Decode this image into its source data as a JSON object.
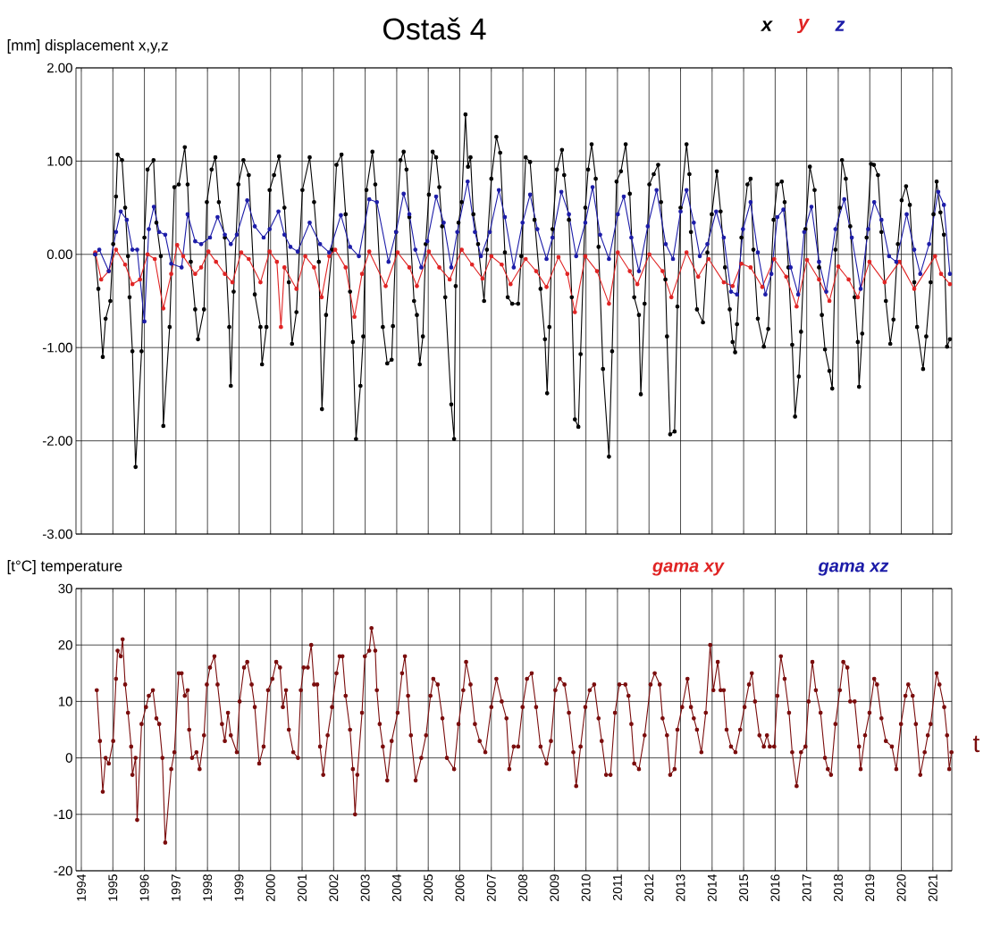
{
  "chart_data": [
    {
      "type": "line",
      "title": "Ostaš 4",
      "ylabel": "[mm] displacement x,y,z",
      "xlim": [
        1993.83,
        2021.6
      ],
      "xticks": [
        1994,
        1995,
        1996,
        1997,
        1998,
        1999,
        2000,
        2001,
        2002,
        2003,
        2004,
        2005,
        2006,
        2007,
        2008,
        2009,
        2010,
        2011,
        2012,
        2013,
        2014,
        2015,
        2016,
        2017,
        2018,
        2019,
        2020,
        2021
      ],
      "ylim": [
        -3,
        2
      ],
      "yticks": [
        {
          "value": -3,
          "label": "-3.00"
        },
        {
          "value": -2,
          "label": "-2.00"
        },
        {
          "value": -1,
          "label": "-1.00"
        },
        {
          "value": 0,
          "label": "0.00"
        },
        {
          "value": 1,
          "label": "1.00"
        },
        {
          "value": 2,
          "label": "2.00"
        }
      ],
      "tick_labels": "y",
      "grid": true,
      "legend": "top right",
      "marker": "circle",
      "line_style": "solid",
      "series": [
        {
          "name": "x",
          "color": "#000000",
          "x": [
            1994.44,
            1994.54,
            1994.68,
            1994.77,
            1994.92,
            1995.01,
            1995.1,
            1995.15,
            1995.29,
            1995.39,
            1995.48,
            1995.53,
            1995.62,
            1995.72,
            1995.91,
            1996.0,
            1996.1,
            1996.29,
            1996.38,
            1996.52,
            1996.6,
            1996.8,
            1996.95,
            1997.09,
            1997.28,
            1997.37,
            1997.47,
            1997.61,
            1997.7,
            1997.89,
            1997.98,
            1998.13,
            1998.25,
            1998.36,
            1998.55,
            1998.69,
            1998.74,
            1998.83,
            1998.98,
            1999.14,
            1999.31,
            1999.5,
            1999.68,
            1999.73,
            1999.87,
            1999.97,
            2000.11,
            2000.27,
            2000.44,
            2000.58,
            2000.68,
            2000.82,
            2001.01,
            2001.24,
            2001.38,
            2001.53,
            2001.63,
            2001.76,
            2001.95,
            2002.09,
            2002.25,
            2002.38,
            2002.52,
            2002.61,
            2002.71,
            2002.85,
            2002.94,
            2003.04,
            2003.23,
            2003.32,
            2003.56,
            2003.7,
            2003.84,
            2003.88,
            2003.98,
            2004.12,
            2004.22,
            2004.31,
            2004.4,
            2004.55,
            2004.64,
            2004.73,
            2004.83,
            2004.92,
            2005.02,
            2005.14,
            2005.25,
            2005.35,
            2005.44,
            2005.54,
            2005.73,
            2005.82,
            2005.87,
            2005.96,
            2006.06,
            2006.18,
            2006.26,
            2006.34,
            2006.43,
            2006.58,
            2006.77,
            2006.86,
            2007.0,
            2007.16,
            2007.28,
            2007.43,
            2007.52,
            2007.66,
            2007.85,
            2007.95,
            2008.09,
            2008.23,
            2008.37,
            2008.56,
            2008.7,
            2008.77,
            2008.84,
            2008.94,
            2009.08,
            2009.24,
            2009.31,
            2009.46,
            2009.55,
            2009.65,
            2009.76,
            2009.83,
            2009.98,
            2010.07,
            2010.18,
            2010.31,
            2010.4,
            2010.54,
            2010.73,
            2010.83,
            2010.97,
            2011.11,
            2011.26,
            2011.39,
            2011.53,
            2011.68,
            2011.74,
            2011.86,
            2012.01,
            2012.15,
            2012.29,
            2012.38,
            2012.52,
            2012.57,
            2012.67,
            2012.81,
            2012.9,
            2013.0,
            2013.19,
            2013.28,
            2013.33,
            2013.52,
            2013.71,
            2013.85,
            2013.99,
            2014.15,
            2014.27,
            2014.41,
            2014.56,
            2014.65,
            2014.73,
            2014.79,
            2014.93,
            2015.12,
            2015.22,
            2015.31,
            2015.45,
            2015.64,
            2015.78,
            2015.95,
            2016.07,
            2016.21,
            2016.3,
            2016.42,
            2016.54,
            2016.63,
            2016.75,
            2016.82,
            2016.96,
            2017.1,
            2017.25,
            2017.39,
            2017.48,
            2017.58,
            2017.72,
            2017.81,
            2017.91,
            2018.05,
            2018.12,
            2018.24,
            2018.38,
            2018.52,
            2018.62,
            2018.66,
            2018.76,
            2018.9,
            2019.04,
            2019.13,
            2019.26,
            2019.37,
            2019.51,
            2019.65,
            2019.75,
            2019.89,
            2020.01,
            2020.15,
            2020.27,
            2020.41,
            2020.5,
            2020.69,
            2020.79,
            2020.93,
            2021.02,
            2021.12,
            2021.24,
            2021.35,
            2021.45,
            2021.54
          ],
          "values": [
            0,
            -0.37,
            -1.1,
            -0.69,
            -0.5,
            0.11,
            0.62,
            1.07,
            1.01,
            0.5,
            -0.02,
            -0.46,
            -1.04,
            -2.28,
            -1.04,
            0.18,
            0.91,
            1.01,
            0.34,
            -0.02,
            -1.84,
            -0.78,
            0.72,
            0.75,
            1.15,
            0.75,
            -0.08,
            -0.59,
            -0.91,
            -0.59,
            0.56,
            0.91,
            1.04,
            0.56,
            0.18,
            -0.78,
            -1.41,
            -0.4,
            0.75,
            1.01,
            0.85,
            -0.43,
            -0.78,
            -1.18,
            -0.78,
            0.69,
            0.85,
            1.05,
            0.5,
            -0.3,
            -0.96,
            -0.62,
            0.69,
            1.04,
            0.56,
            -0.08,
            -1.66,
            -0.65,
            0.05,
            0.96,
            1.07,
            0.43,
            -0.4,
            -0.94,
            -1.98,
            -1.41,
            -0.88,
            0.69,
            1.1,
            0.75,
            -0.78,
            -1.17,
            -1.13,
            -0.77,
            0.24,
            1.01,
            1.1,
            0.91,
            0.4,
            -0.5,
            -0.65,
            -1.18,
            -0.88,
            0.11,
            0.64,
            1.1,
            1.04,
            0.72,
            0.3,
            -0.46,
            -1.61,
            -1.98,
            -0.34,
            0.34,
            0.56,
            1.5,
            0.94,
            1.04,
            0.43,
            0.11,
            -0.5,
            0.05,
            0.81,
            1.26,
            1.09,
            0.02,
            -0.46,
            -0.53,
            -0.53,
            -0.02,
            1.04,
            0.99,
            0.37,
            -0.37,
            -0.91,
            -1.49,
            -0.78,
            0.27,
            0.91,
            1.12,
            0.85,
            0.37,
            -0.46,
            -1.77,
            -1.85,
            -1.07,
            0.5,
            0.91,
            1.18,
            0.81,
            0.08,
            -1.23,
            -2.17,
            -1.04,
            0.78,
            0.89,
            1.18,
            0.65,
            -0.46,
            -0.65,
            -1.5,
            -0.53,
            0.75,
            0.86,
            0.96,
            0.56,
            -0.27,
            -0.88,
            -1.93,
            -1.9,
            -0.56,
            0.5,
            1.18,
            0.86,
            0.24,
            -0.59,
            -0.73,
            0.02,
            0.43,
            0.89,
            0.46,
            -0.14,
            -0.59,
            -0.94,
            -1.05,
            -0.75,
            0.18,
            0.75,
            0.81,
            0.05,
            -0.69,
            -0.99,
            -0.8,
            0.37,
            0.75,
            0.78,
            0.56,
            -0.14,
            -0.97,
            -1.74,
            -1.31,
            -0.83,
            0.27,
            0.94,
            0.69,
            -0.14,
            -0.65,
            -1.02,
            -1.25,
            -1.44,
            0.05,
            0.5,
            1.01,
            0.81,
            0.3,
            -0.46,
            -0.94,
            -1.42,
            -0.85,
            0.18,
            0.97,
            0.96,
            0.85,
            0.24,
            -0.5,
            -0.96,
            -0.7,
            0.11,
            0.58,
            0.73,
            0.53,
            -0.3,
            -0.78,
            -1.23,
            -0.88,
            -0.3,
            0.43,
            0.78,
            0.45,
            0.21,
            -0.99,
            -0.91
          ]
        },
        {
          "name": "y",
          "color": "#e02424",
          "x": [
            1994.44,
            1994.63,
            1994.87,
            1995.1,
            1995.39,
            1995.62,
            1995.86,
            1996.1,
            1996.33,
            1996.6,
            1996.85,
            1997.04,
            1997.23,
            1997.61,
            1997.8,
            1998.03,
            1998.27,
            1998.55,
            1998.79,
            1999.07,
            1999.31,
            1999.68,
            1999.97,
            2000.2,
            2000.33,
            2000.44,
            2000.82,
            2001.1,
            2001.38,
            2001.62,
            2001.86,
            2002.05,
            2002.38,
            2002.66,
            2002.9,
            2003.13,
            2003.65,
            2004.03,
            2004.4,
            2004.64,
            2005.02,
            2005.35,
            2005.68,
            2006.06,
            2006.39,
            2006.72,
            2007.0,
            2007.33,
            2007.61,
            2008.09,
            2008.42,
            2008.75,
            2009.13,
            2009.41,
            2009.65,
            2009.98,
            2010.35,
            2010.73,
            2011.01,
            2011.39,
            2011.63,
            2012.01,
            2012.43,
            2012.71,
            2013.19,
            2013.56,
            2013.89,
            2014.37,
            2014.65,
            2014.93,
            2015.22,
            2015.59,
            2015.97,
            2016.35,
            2016.68,
            2017.01,
            2017.39,
            2017.72,
            2018.0,
            2018.33,
            2018.62,
            2018.99,
            2019.47,
            2019.94,
            2020.41,
            2021.07,
            2021.26,
            2021.54
          ],
          "values": [
            0.02,
            -0.27,
            -0.18,
            0.05,
            -0.11,
            -0.32,
            -0.27,
            0.0,
            -0.05,
            -0.58,
            -0.21,
            0.1,
            -0.02,
            -0.21,
            -0.14,
            0.03,
            -0.08,
            -0.21,
            -0.3,
            0.02,
            -0.05,
            -0.3,
            0.03,
            -0.08,
            -0.78,
            -0.14,
            -0.37,
            -0.02,
            -0.14,
            -0.46,
            -0.02,
            0.05,
            -0.14,
            -0.67,
            -0.21,
            0.03,
            -0.34,
            0.02,
            -0.14,
            -0.34,
            0.03,
            -0.14,
            -0.27,
            0.05,
            -0.11,
            -0.26,
            -0.02,
            -0.11,
            -0.32,
            -0.05,
            -0.18,
            -0.35,
            -0.03,
            -0.21,
            -0.62,
            -0.02,
            -0.18,
            -0.53,
            0.02,
            -0.18,
            -0.32,
            0.0,
            -0.18,
            -0.46,
            0.02,
            -0.24,
            -0.05,
            -0.3,
            -0.34,
            -0.1,
            -0.14,
            -0.35,
            -0.05,
            -0.24,
            -0.56,
            -0.06,
            -0.27,
            -0.5,
            -0.13,
            -0.27,
            -0.46,
            -0.08,
            -0.3,
            -0.08,
            -0.37,
            -0.02,
            -0.21,
            -0.32
          ]
        },
        {
          "name": "z",
          "color": "#1c1ca8",
          "x": [
            1994.44,
            1994.57,
            1994.87,
            1995.1,
            1995.25,
            1995.44,
            1995.62,
            1995.77,
            1996.0,
            1996.14,
            1996.3,
            1996.47,
            1996.66,
            1996.85,
            1997.18,
            1997.37,
            1997.61,
            1997.8,
            1998.08,
            1998.32,
            1998.55,
            1998.74,
            1998.93,
            1999.26,
            1999.5,
            1999.78,
            1999.97,
            2000.25,
            2000.44,
            2000.63,
            2000.86,
            2001.24,
            2001.57,
            2001.86,
            2002.23,
            2002.52,
            2002.8,
            2003.13,
            2003.37,
            2003.74,
            2003.98,
            2004.22,
            2004.4,
            2004.59,
            2004.78,
            2004.97,
            2005.25,
            2005.49,
            2005.73,
            2005.92,
            2006.25,
            2006.48,
            2006.67,
            2006.95,
            2007.24,
            2007.43,
            2007.71,
            2007.99,
            2008.23,
            2008.46,
            2008.75,
            2008.94,
            2009.22,
            2009.46,
            2009.69,
            2009.98,
            2010.21,
            2010.45,
            2010.73,
            2011.01,
            2011.2,
            2011.44,
            2011.68,
            2011.96,
            2012.24,
            2012.53,
            2012.76,
            2013.0,
            2013.19,
            2013.42,
            2013.61,
            2013.85,
            2014.13,
            2014.37,
            2014.6,
            2014.79,
            2014.98,
            2015.22,
            2015.45,
            2015.69,
            2015.88,
            2016.07,
            2016.26,
            2016.49,
            2016.73,
            2016.92,
            2017.15,
            2017.39,
            2017.62,
            2017.91,
            2018.19,
            2018.43,
            2018.71,
            2018.95,
            2019.14,
            2019.37,
            2019.61,
            2019.84,
            2020.17,
            2020.41,
            2020.6,
            2020.88,
            2021.17,
            2021.35,
            2021.54
          ],
          "values": [
            0.0,
            0.05,
            -0.18,
            0.24,
            0.46,
            0.37,
            0.05,
            0.05,
            -0.72,
            0.27,
            0.51,
            0.24,
            0.21,
            -0.1,
            -0.14,
            0.43,
            0.14,
            0.11,
            0.18,
            0.4,
            0.21,
            0.11,
            0.21,
            0.58,
            0.3,
            0.18,
            0.27,
            0.46,
            0.21,
            0.08,
            0.03,
            0.34,
            0.11,
            0.02,
            0.42,
            0.08,
            -0.02,
            0.59,
            0.56,
            -0.08,
            0.24,
            0.65,
            0.43,
            0.05,
            -0.14,
            0.14,
            0.62,
            0.34,
            -0.14,
            0.24,
            0.78,
            0.24,
            -0.02,
            0.24,
            0.69,
            0.4,
            -0.14,
            0.34,
            0.64,
            0.27,
            -0.05,
            0.18,
            0.67,
            0.43,
            -0.02,
            0.34,
            0.72,
            0.21,
            -0.05,
            0.43,
            0.62,
            0.18,
            -0.18,
            0.3,
            0.69,
            0.11,
            -0.05,
            0.46,
            0.69,
            0.34,
            -0.02,
            0.11,
            0.46,
            0.18,
            -0.4,
            -0.43,
            0.27,
            0.56,
            0.02,
            -0.43,
            -0.21,
            0.4,
            0.48,
            -0.14,
            -0.43,
            0.24,
            0.51,
            -0.08,
            -0.4,
            0.27,
            0.59,
            0.18,
            -0.37,
            0.27,
            0.56,
            0.37,
            -0.02,
            -0.08,
            0.43,
            0.05,
            -0.21,
            0.11,
            0.67,
            0.53,
            -0.21
          ]
        }
      ]
    },
    {
      "type": "line",
      "ylabel": "[t°C] temperature",
      "annotations": [
        "gama xy",
        "gama xz"
      ],
      "xlim": [
        1993.83,
        2021.6
      ],
      "xticks": [
        1994,
        1995,
        1996,
        1997,
        1998,
        1999,
        2000,
        2001,
        2002,
        2003,
        2004,
        2005,
        2006,
        2007,
        2008,
        2009,
        2010,
        2011,
        2012,
        2013,
        2014,
        2015,
        2016,
        2017,
        2018,
        2019,
        2020,
        2021
      ],
      "ylim": [
        -20,
        30
      ],
      "yticks": [
        -20,
        -10,
        0,
        10,
        20,
        30
      ],
      "grid": true,
      "legend": "right",
      "marker": "circle",
      "line_style": "solid",
      "series": [
        {
          "name": "t",
          "color": "#7a0c0c",
          "x": [
            1994.49,
            1994.59,
            1994.68,
            1994.77,
            1994.87,
            1995.01,
            1995.1,
            1995.15,
            1995.25,
            1995.31,
            1995.39,
            1995.48,
            1995.58,
            1995.62,
            1995.72,
            1995.77,
            1995.91,
            1996.05,
            1996.14,
            1996.27,
            1996.38,
            1996.47,
            1996.57,
            1996.66,
            1996.85,
            1996.95,
            1997.09,
            1997.18,
            1997.28,
            1997.37,
            1997.42,
            1997.51,
            1997.65,
            1997.75,
            1997.89,
            1997.98,
            1998.08,
            1998.22,
            1998.32,
            1998.46,
            1998.55,
            1998.65,
            1998.74,
            1998.93,
            1999.02,
            1999.16,
            1999.26,
            1999.4,
            1999.5,
            1999.64,
            1999.78,
            1999.92,
            2000.06,
            2000.18,
            2000.3,
            2000.39,
            2000.49,
            2000.58,
            2000.72,
            2000.87,
            2000.96,
            2001.05,
            2001.18,
            2001.29,
            2001.38,
            2001.48,
            2001.57,
            2001.67,
            2001.81,
            2001.95,
            2002.09,
            2002.19,
            2002.28,
            2002.38,
            2002.52,
            2002.61,
            2002.68,
            2002.75,
            2002.9,
            2002.99,
            2003.13,
            2003.2,
            2003.32,
            2003.37,
            2003.46,
            2003.56,
            2003.7,
            2003.84,
            2004.03,
            2004.17,
            2004.26,
            2004.36,
            2004.45,
            2004.6,
            2004.78,
            2004.93,
            2005.07,
            2005.16,
            2005.3,
            2005.45,
            2005.59,
            2005.82,
            2005.96,
            2006.11,
            2006.2,
            2006.34,
            2006.48,
            2006.63,
            2006.81,
            2007.0,
            2007.16,
            2007.33,
            2007.48,
            2007.57,
            2007.71,
            2007.85,
            2007.99,
            2008.13,
            2008.28,
            2008.42,
            2008.56,
            2008.75,
            2008.89,
            2009.03,
            2009.17,
            2009.32,
            2009.46,
            2009.6,
            2009.69,
            2009.83,
            2009.98,
            2010.12,
            2010.26,
            2010.4,
            2010.5,
            2010.64,
            2010.78,
            2010.92,
            2011.06,
            2011.25,
            2011.35,
            2011.44,
            2011.53,
            2011.68,
            2011.86,
            2012.05,
            2012.18,
            2012.34,
            2012.43,
            2012.57,
            2012.67,
            2012.81,
            2012.9,
            2013.05,
            2013.22,
            2013.33,
            2013.42,
            2013.52,
            2013.66,
            2013.8,
            2013.94,
            2014.04,
            2014.18,
            2014.27,
            2014.37,
            2014.46,
            2014.6,
            2014.74,
            2014.89,
            2015.03,
            2015.17,
            2015.26,
            2015.36,
            2015.5,
            2015.64,
            2015.74,
            2015.83,
            2015.97,
            2016.07,
            2016.18,
            2016.3,
            2016.44,
            2016.54,
            2016.68,
            2016.82,
            2016.96,
            2017.06,
            2017.18,
            2017.29,
            2017.44,
            2017.58,
            2017.67,
            2017.77,
            2017.91,
            2018.05,
            2018.16,
            2018.29,
            2018.38,
            2018.52,
            2018.66,
            2018.71,
            2018.85,
            2018.99,
            2019.14,
            2019.23,
            2019.37,
            2019.51,
            2019.7,
            2019.84,
            2019.99,
            2020.13,
            2020.22,
            2020.36,
            2020.46,
            2020.6,
            2020.74,
            2020.84,
            2020.93,
            2021.12,
            2021.21,
            2021.36,
            2021.45,
            2021.52,
            2021.59
          ],
          "values": [
            12,
            3,
            -6,
            0,
            -1,
            3,
            14,
            19,
            18,
            21,
            13,
            8,
            2,
            -3,
            0,
            -11,
            6,
            9,
            11,
            12,
            7,
            6,
            0,
            -15,
            -2,
            1,
            15,
            15,
            11,
            12,
            5,
            0,
            1,
            -2,
            4,
            13,
            16,
            18,
            13,
            6,
            3,
            8,
            4,
            1,
            10,
            16,
            17,
            13,
            9,
            -1,
            2,
            12,
            14,
            17,
            16,
            9,
            12,
            5,
            1,
            0,
            12,
            16,
            16,
            20,
            13,
            13,
            2,
            -3,
            4,
            9,
            15,
            18,
            18,
            11,
            5,
            -2,
            -10,
            -3,
            8,
            18,
            19,
            23,
            19,
            12,
            6,
            2,
            -4,
            3,
            8,
            15,
            18,
            11,
            4,
            -4,
            0,
            4,
            11,
            14,
            13,
            7,
            0,
            -2,
            6,
            12,
            17,
            13,
            6,
            3,
            1,
            9,
            14,
            10,
            7,
            -2,
            2,
            2,
            9,
            14,
            15,
            9,
            2,
            -1,
            3,
            12,
            14,
            13,
            8,
            1,
            -5,
            2,
            9,
            12,
            13,
            7,
            3,
            -3,
            -3,
            8,
            13,
            13,
            11,
            6,
            -1,
            -2,
            4,
            13,
            15,
            13,
            7,
            4,
            -3,
            -2,
            5,
            9,
            14,
            9,
            7,
            5,
            1,
            8,
            20,
            12,
            17,
            12,
            12,
            5,
            2,
            1,
            5,
            9,
            13,
            15,
            10,
            4,
            2,
            4,
            2,
            2,
            11,
            18,
            14,
            8,
            1,
            -5,
            1,
            2,
            10,
            17,
            12,
            8,
            0,
            -2,
            -3,
            6,
            12,
            17,
            16,
            10,
            10,
            2,
            -2,
            4,
            8,
            14,
            13,
            7,
            3,
            2,
            -2,
            6,
            11,
            13,
            11,
            6,
            -3,
            1,
            4,
            6,
            15,
            13,
            9,
            4,
            -2,
            1
          ]
        }
      ]
    }
  ]
}
